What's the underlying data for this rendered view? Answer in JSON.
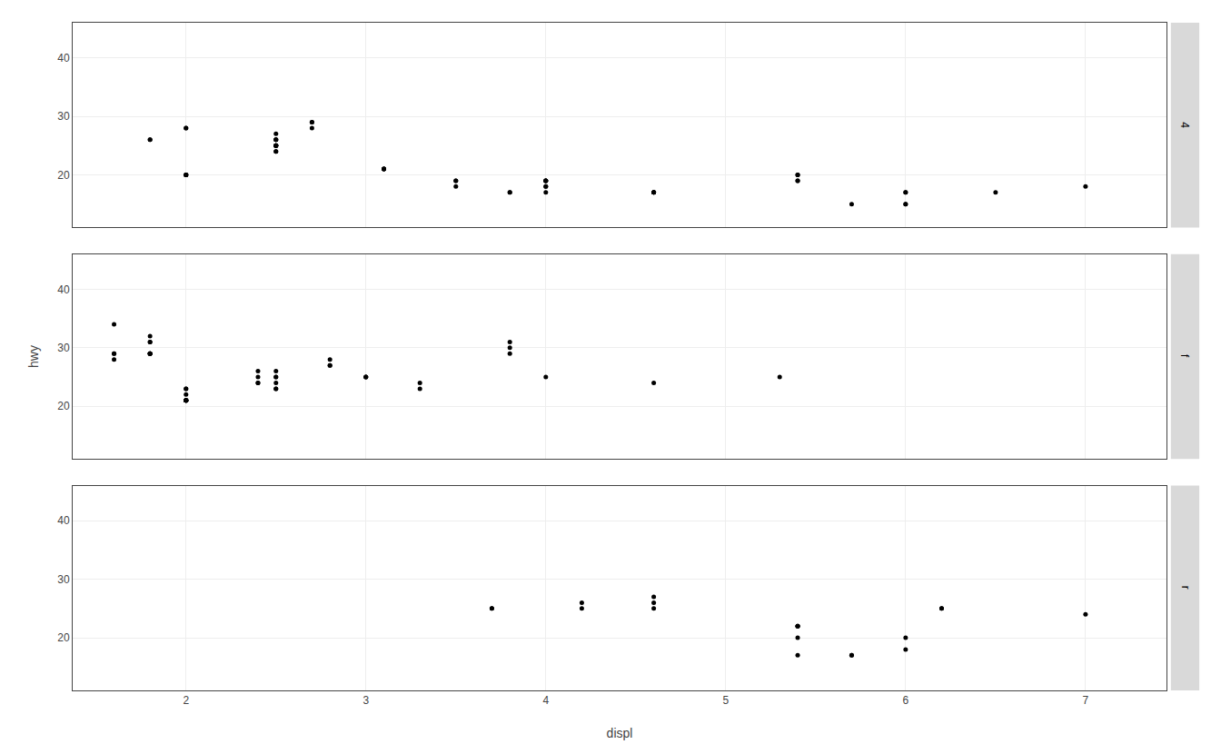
{
  "chart_data": [
    {
      "type": "scatter",
      "title": "4",
      "x": [
        1.8,
        1.8,
        2.0,
        2.0,
        2.0,
        2.0,
        2.0,
        2.0,
        2.5,
        2.5,
        2.5,
        2.5,
        2.5,
        2.5,
        2.5,
        2.5,
        2.5,
        2.5,
        2.5,
        2.7,
        2.7,
        2.7,
        3.1,
        3.1,
        3.1,
        3.1,
        3.5,
        3.5,
        3.5,
        3.8,
        3.8,
        4.0,
        4.0,
        4.0,
        4.0,
        4.0,
        4.0,
        4.0,
        4.6,
        4.6,
        4.6,
        4.6,
        5.4,
        5.4,
        5.4,
        5.4,
        5.7,
        6.0,
        6.0,
        6.0,
        6.0,
        6.5,
        7.0
      ],
      "values": [
        26,
        26,
        20,
        20,
        20,
        20,
        28,
        28,
        25,
        25,
        25,
        25,
        25,
        26,
        26,
        26,
        24,
        24,
        27,
        29,
        29,
        28,
        21,
        21,
        21,
        21,
        19,
        19,
        18,
        17,
        17,
        19,
        19,
        19,
        19,
        18,
        18,
        17,
        17,
        17,
        17,
        17,
        20,
        20,
        19,
        19,
        15,
        17,
        17,
        15,
        15,
        17,
        18
      ],
      "color": "#000000",
      "xlim": [
        1.37,
        7.45
      ],
      "xticks": [
        2,
        3,
        4,
        5,
        6,
        7
      ],
      "ylim": [
        11,
        46
      ],
      "yticks": [
        20,
        30,
        40
      ],
      "grid": true,
      "tick_labels": "y"
    },
    {
      "type": "scatter",
      "title": "f",
      "ylabel": "hwy",
      "x": [
        1.6,
        1.6,
        1.6,
        1.6,
        1.8,
        1.8,
        1.8,
        1.8,
        1.8,
        1.8,
        1.8,
        1.8,
        2.0,
        2.0,
        2.0,
        2.0,
        2.0,
        2.0,
        2.0,
        2.0,
        2.0,
        2.0,
        2.0,
        2.0,
        2.4,
        2.4,
        2.4,
        2.4,
        2.5,
        2.5,
        2.5,
        2.5,
        2.5,
        2.5,
        2.8,
        2.8,
        2.8,
        3.0,
        3.0,
        3.0,
        3.3,
        3.3,
        3.8,
        3.8,
        3.8,
        4.0,
        4.6,
        5.3
      ],
      "values": [
        28,
        29,
        34,
        29,
        29,
        29,
        31,
        31,
        32,
        29,
        29,
        29,
        21,
        21,
        21,
        21,
        21,
        21,
        21,
        21,
        22,
        23,
        23,
        21,
        24,
        24,
        25,
        26,
        23,
        23,
        24,
        25,
        25,
        26,
        27,
        27,
        28,
        25,
        25,
        25,
        23,
        24,
        29,
        30,
        31,
        25,
        24,
        25
      ],
      "color": "#000000",
      "xlim": [
        1.37,
        7.45
      ],
      "xticks": [
        2,
        3,
        4,
        5,
        6,
        7
      ],
      "ylim": [
        11,
        46
      ],
      "yticks": [
        20,
        30,
        40
      ],
      "grid": true,
      "tick_labels": "y"
    },
    {
      "type": "scatter",
      "title": "r",
      "xlabel": "displ",
      "x": [
        3.7,
        3.7,
        4.2,
        4.2,
        4.6,
        4.6,
        4.6,
        5.4,
        5.4,
        5.4,
        5.4,
        5.4,
        5.7,
        5.7,
        6.0,
        6.0,
        6.2,
        6.2,
        7.0
      ],
      "values": [
        25,
        25,
        26,
        25,
        25,
        26,
        27,
        22,
        22,
        22,
        20,
        17,
        17,
        17,
        18,
        20,
        25,
        25,
        24
      ],
      "color": "#000000",
      "xlim": [
        1.37,
        7.45
      ],
      "xticks": [
        2,
        3,
        4,
        5,
        6,
        7
      ],
      "ylim": [
        11,
        46
      ],
      "yticks": [
        20,
        30,
        40
      ],
      "grid": true,
      "tick_labels": true
    }
  ]
}
